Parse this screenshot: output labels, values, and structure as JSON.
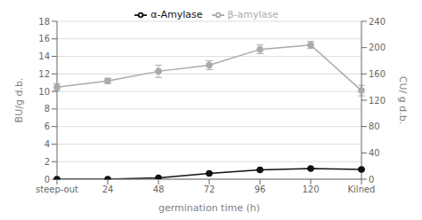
{
  "chart_data": {
    "type": "line",
    "categories": [
      "steep-out",
      "24",
      "48",
      "72",
      "96",
      "120",
      "Kilned"
    ],
    "series": [
      {
        "name": "β-amylase",
        "color": "#aaaaaa",
        "marker": "o",
        "values": [
          10.5,
          11.2,
          12.3,
          13.0,
          14.8,
          15.3,
          10.1
        ],
        "yerr": [
          0.4,
          0.3,
          0.7,
          0.5,
          0.5,
          0.4,
          0.6
        ]
      },
      {
        "name": "α-Amylase",
        "color": "#111111",
        "marker": "o",
        "axis": "y2",
        "values": [
          0.05,
          0.15,
          2.05,
          8.7,
          14.0,
          16.3,
          14.9
        ],
        "yerr": [
          0.05,
          0.1,
          0.3,
          0.5,
          0.5,
          0.4,
          0.9
        ]
      }
    ],
    "ylim": [
      0.0,
      18.0
    ],
    "yticks": [
      0.0,
      2.0,
      4.0,
      6.0,
      8.0,
      10.0,
      12.0,
      14.0,
      16.0,
      18.0
    ],
    "y2lim": [
      0.0,
      240.0
    ],
    "y2ticks": [
      0.0,
      40.0,
      80.0,
      120.0,
      160.0,
      200.0,
      240.0
    ],
    "y_label": "BU/g d.b.",
    "y2_label": "CU/ g d.b.",
    "x_label": "germination time (h)",
    "grid": true,
    "legend": "top"
  }
}
